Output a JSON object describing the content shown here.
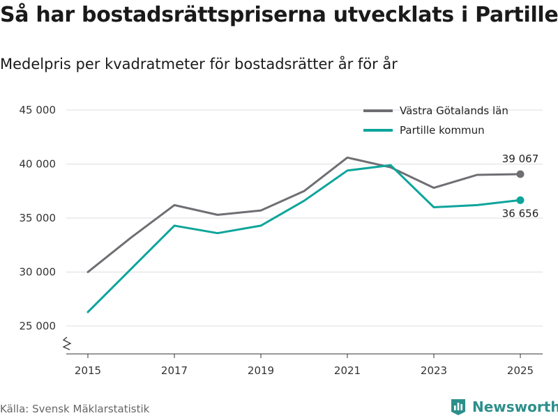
{
  "header": {
    "title": "Så har bostadsrättspriserna utvecklats i Partille",
    "subtitle": "Medelpris per kvadratmeter för bostadsrätter år för år"
  },
  "footer": {
    "source": "Källa: Svensk Mäklarstatistik",
    "brand": "Newsworthy"
  },
  "colors": {
    "vastra": "#6e6e73",
    "partille": "#0da59b",
    "grid": "#dddddd",
    "axis": "#333333",
    "brand": "#2d8f8a"
  },
  "chart_data": {
    "type": "line",
    "title": "Så har bostadsrättspriserna utvecklats i Partille",
    "subtitle": "Medelpris per kvadratmeter för bostadsrätter år för år",
    "xlabel": "",
    "ylabel": "",
    "x": [
      2015,
      2016,
      2017,
      2018,
      2019,
      2020,
      2021,
      2022,
      2023,
      2024,
      2025
    ],
    "x_ticks": [
      2015,
      2017,
      2019,
      2021,
      2023,
      2025
    ],
    "x_tick_labels": [
      "2015",
      "2017",
      "2019",
      "2021",
      "2023",
      "2025"
    ],
    "y_ticks": [
      25000,
      30000,
      35000,
      40000,
      45000
    ],
    "y_tick_labels": [
      "25 000",
      "30 000",
      "35 000",
      "40 000",
      "45 000"
    ],
    "xlim": [
      2014.8,
      2025.4
    ],
    "ylim": [
      25000,
      45000
    ],
    "axis_break": true,
    "grid": true,
    "legend_position": "top-right",
    "series": [
      {
        "name": "Västra Götalands län",
        "color": "#6e6e73",
        "values": [
          30000,
          33200,
          36200,
          35300,
          35700,
          37500,
          40600,
          39700,
          37800,
          39000,
          39067
        ],
        "end_label": "39 067"
      },
      {
        "name": "Partille kommun",
        "color": "#0da59b",
        "values": [
          26300,
          30300,
          34300,
          33600,
          34300,
          36600,
          39400,
          39900,
          36000,
          36200,
          36656
        ],
        "end_label": "36 656"
      }
    ]
  }
}
